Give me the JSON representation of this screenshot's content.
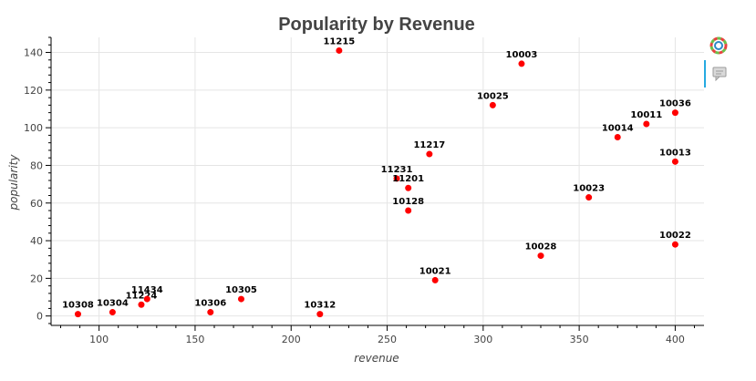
{
  "chart_data": {
    "type": "scatter",
    "title": "Popularity by Revenue",
    "xlabel": "revenue",
    "ylabel": "popularity",
    "xlim": [
      75,
      415
    ],
    "ylim": [
      -5,
      148
    ],
    "xticks": [
      100,
      150,
      200,
      250,
      300,
      350,
      400
    ],
    "yticks": [
      0,
      20,
      40,
      60,
      80,
      100,
      120,
      140
    ],
    "grid": true,
    "point_color": "#ff0000",
    "points": [
      {
        "x": 89,
        "y": 1,
        "label": "10308"
      },
      {
        "x": 107,
        "y": 2,
        "label": "10304"
      },
      {
        "x": 122,
        "y": 6,
        "label": "11224"
      },
      {
        "x": 125,
        "y": 9,
        "label": "11434"
      },
      {
        "x": 158,
        "y": 2,
        "label": "10306"
      },
      {
        "x": 174,
        "y": 9,
        "label": "10305"
      },
      {
        "x": 215,
        "y": 1,
        "label": "10312"
      },
      {
        "x": 225,
        "y": 141,
        "label": "11215"
      },
      {
        "x": 255,
        "y": 73,
        "label": "11231"
      },
      {
        "x": 261,
        "y": 68,
        "label": "11201"
      },
      {
        "x": 261,
        "y": 56,
        "label": "10128"
      },
      {
        "x": 272,
        "y": 86,
        "label": "11217"
      },
      {
        "x": 275,
        "y": 19,
        "label": "10021"
      },
      {
        "x": 305,
        "y": 112,
        "label": "10025"
      },
      {
        "x": 320,
        "y": 134,
        "label": "10003"
      },
      {
        "x": 330,
        "y": 32,
        "label": "10028"
      },
      {
        "x": 355,
        "y": 63,
        "label": "10023"
      },
      {
        "x": 370,
        "y": 95,
        "label": "10014"
      },
      {
        "x": 385,
        "y": 102,
        "label": "10011"
      },
      {
        "x": 400,
        "y": 108,
        "label": "10036"
      },
      {
        "x": 400,
        "y": 82,
        "label": "10013"
      },
      {
        "x": 400,
        "y": 38,
        "label": "10022"
      }
    ]
  },
  "toolbar": {
    "logo_icon": "bokeh-logo-icon",
    "hover_icon": "hover-tool-icon"
  }
}
